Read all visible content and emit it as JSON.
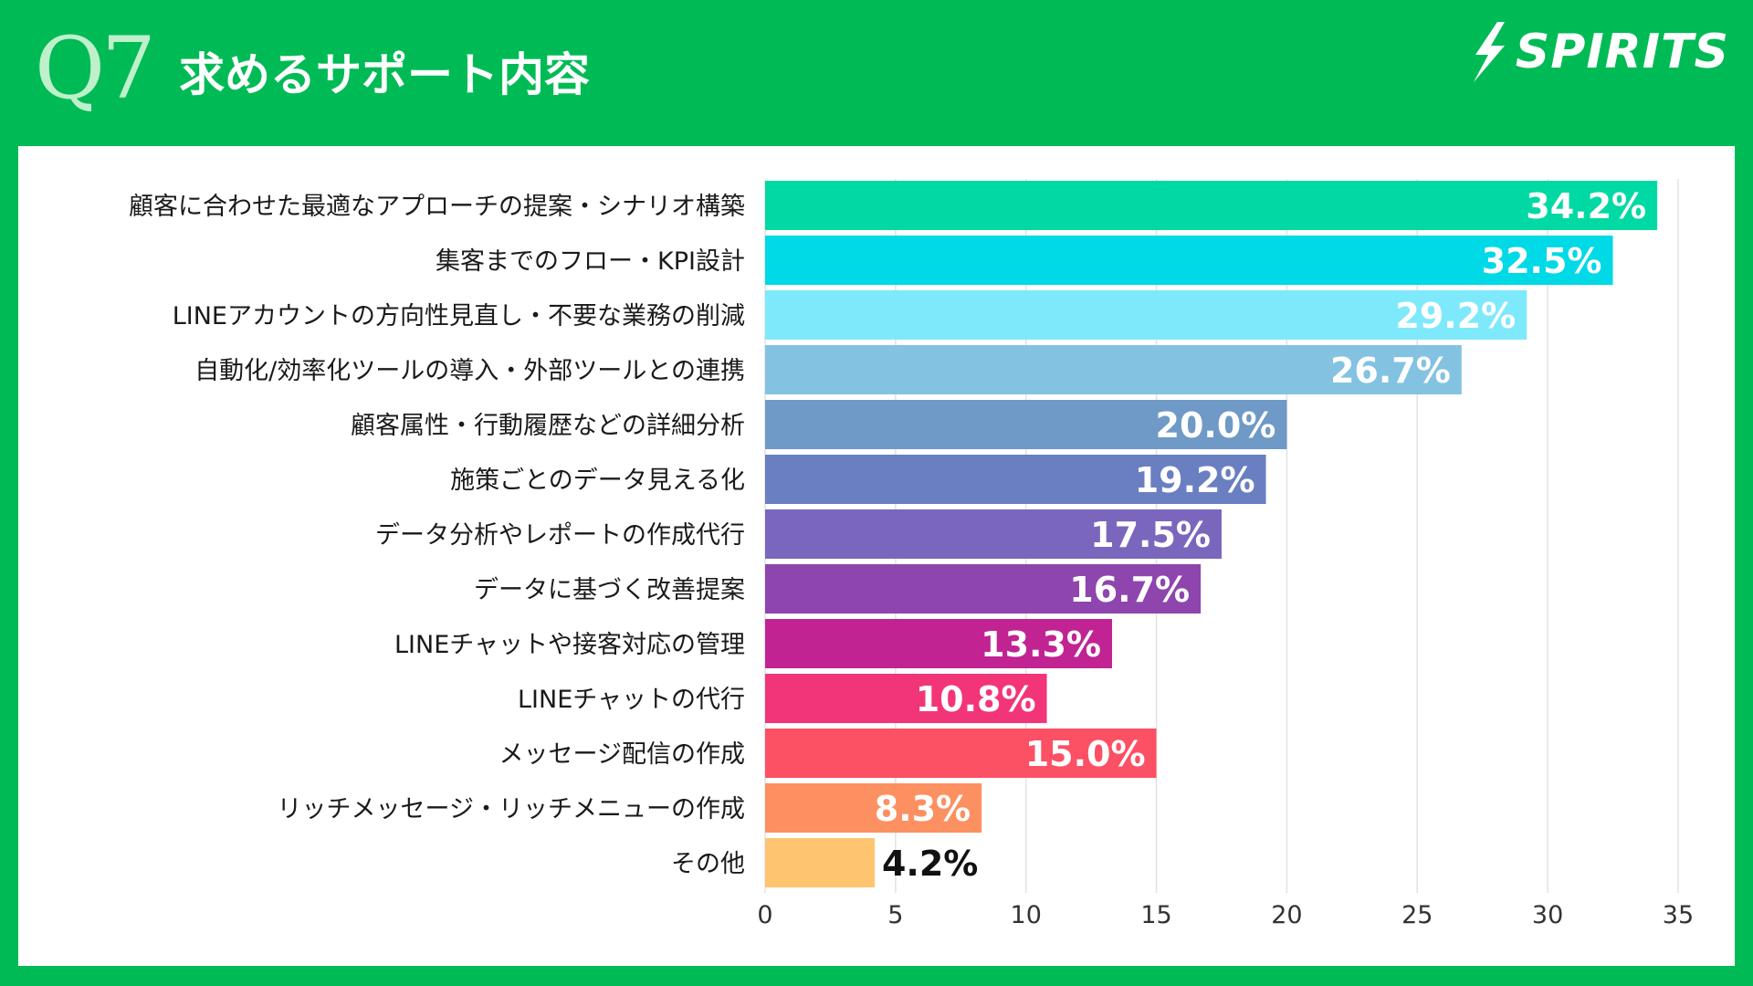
{
  "header": {
    "question_number": "Q7",
    "title": "求めるサポート内容",
    "logo_text": "SPIRITS"
  },
  "colors": {
    "background": "#00bb55",
    "panel": "#ffffff",
    "grid": "#e2e2e2"
  },
  "chart_data": {
    "type": "bar",
    "orientation": "horizontal",
    "title": "求めるサポート内容",
    "xlabel": "",
    "ylabel": "",
    "xlim": [
      0,
      35
    ],
    "ticks": [
      0,
      5,
      10,
      15,
      20,
      25,
      30,
      35
    ],
    "grid": true,
    "categories": [
      "顧客に合わせた最適なアプローチの提案・シナリオ構築",
      "集客までのフロー・KPI設計",
      "LINEアカウントの方向性見直し・不要な業務の削減",
      "自動化/効率化ツールの導入・外部ツールとの連携",
      "顧客属性・行動履歴などの詳細分析",
      "施策ごとのデータ見える化",
      "データ分析やレポートの作成代行",
      "データに基づく改善提案",
      "LINEチャットや接客対応の管理",
      "LINEチャットの代行",
      "メッセージ配信の作成",
      "リッチメッセージ・リッチメニューの作成",
      "その他"
    ],
    "values": [
      34.2,
      32.5,
      29.2,
      26.7,
      20.0,
      19.2,
      17.5,
      16.7,
      13.3,
      10.8,
      15.0,
      8.3,
      4.2
    ],
    "value_labels": [
      "34.2%",
      "32.5%",
      "29.2%",
      "26.7%",
      "20.0%",
      "19.2%",
      "17.5%",
      "16.7%",
      "13.3%",
      "10.8%",
      "15.0%",
      "8.3%",
      "4.2%"
    ],
    "bar_colors": [
      "#00d9a3",
      "#00d9e6",
      "#7ee9fb",
      "#84c2e2",
      "#6f99c6",
      "#6a7fc1",
      "#7a66bd",
      "#8e45ae",
      "#c12393",
      "#f23579",
      "#fc5064",
      "#fd9060",
      "#fec46f"
    ],
    "label_colors": [
      "#ffffff",
      "#ffffff",
      "#ffffff",
      "#ffffff",
      "#ffffff",
      "#ffffff",
      "#ffffff",
      "#ffffff",
      "#ffffff",
      "#ffffff",
      "#ffffff",
      "#ffffff",
      "#111111"
    ]
  }
}
